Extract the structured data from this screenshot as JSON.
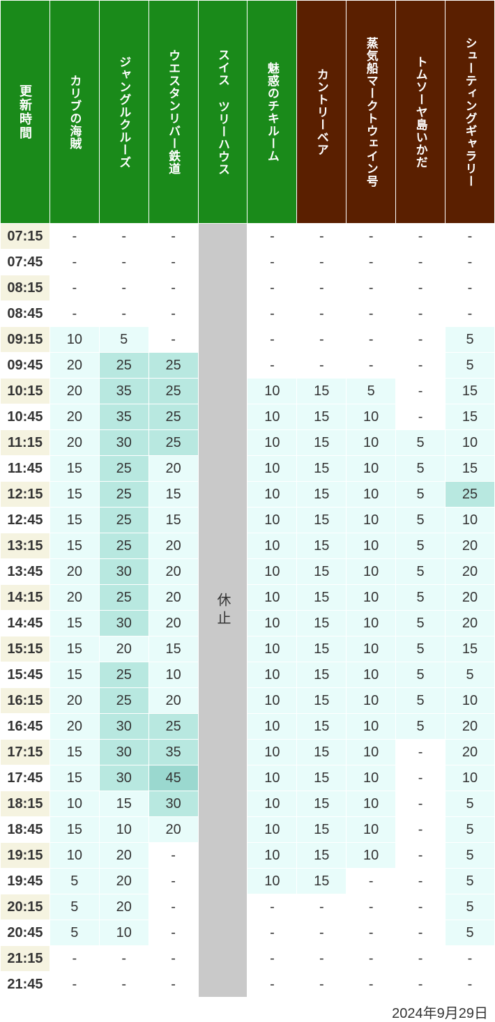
{
  "date_label": "2024年9月29日",
  "closed_label": "休止",
  "colors": {
    "header_time_bg": "#1a8a1a",
    "header_green_bg": "#1a8a1a",
    "header_brown_bg": "#5a1f00",
    "time_row_even": "#f5f3e0",
    "time_row_odd": "#ffffff",
    "closed_bg": "#c9c9c9",
    "tier_white": "#ffffff",
    "tier_light": "#e8fcfa",
    "tier_mid": "#b8e8e0",
    "tier_dark": "#9ad8cf"
  },
  "tiers": {
    "white": {
      "min": null,
      "max": null
    },
    "light": {
      "min": 5,
      "max": 20
    },
    "mid": {
      "min": 25,
      "max": 35
    },
    "dark": {
      "min": 40,
      "max": 999
    }
  },
  "columns": [
    {
      "key": "time",
      "label": "更新時間",
      "color_group": "green",
      "is_time": true
    },
    {
      "key": "c1",
      "label": "カリブの海賊",
      "color_group": "green"
    },
    {
      "key": "c2",
      "label": "ジャングルクルーズ",
      "color_group": "green"
    },
    {
      "key": "c3",
      "label": "ウエスタンリバー鉄道",
      "color_group": "green"
    },
    {
      "key": "c4",
      "label": "スイス ツリーハウス",
      "color_group": "green",
      "closed": true
    },
    {
      "key": "c5",
      "label": "魅惑のチキルーム",
      "color_group": "green"
    },
    {
      "key": "c6",
      "label": "カントリーベア",
      "color_group": "brown"
    },
    {
      "key": "c7",
      "label": "蒸気船マークトウェイン号",
      "color_group": "brown"
    },
    {
      "key": "c8",
      "label": "トムソーヤ島いかだ",
      "color_group": "brown"
    },
    {
      "key": "c9",
      "label": "シューティングギャラリー",
      "color_group": "brown"
    }
  ],
  "times": [
    "07:15",
    "07:45",
    "08:15",
    "08:45",
    "09:15",
    "09:45",
    "10:15",
    "10:45",
    "11:15",
    "11:45",
    "12:15",
    "12:45",
    "13:15",
    "13:45",
    "14:15",
    "14:45",
    "15:15",
    "15:45",
    "16:15",
    "16:45",
    "17:15",
    "17:45",
    "18:15",
    "18:45",
    "19:15",
    "19:45",
    "20:15",
    "20:45",
    "21:15",
    "21:45"
  ],
  "data": {
    "c1": [
      "-",
      "-",
      "-",
      "-",
      "10",
      "20",
      "20",
      "20",
      "20",
      "15",
      "15",
      "15",
      "15",
      "20",
      "20",
      "15",
      "15",
      "15",
      "20",
      "20",
      "15",
      "15",
      "10",
      "15",
      "10",
      "5",
      "5",
      "5",
      "-",
      "-"
    ],
    "c2": [
      "-",
      "-",
      "-",
      "-",
      "5",
      "25",
      "35",
      "35",
      "30",
      "25",
      "25",
      "25",
      "25",
      "30",
      "25",
      "30",
      "20",
      "25",
      "25",
      "30",
      "30",
      "30",
      "15",
      "10",
      "20",
      "20",
      "20",
      "10",
      "-",
      "-"
    ],
    "c3": [
      "-",
      "-",
      "-",
      "-",
      "-",
      "25",
      "25",
      "25",
      "25",
      "20",
      "15",
      "15",
      "20",
      "20",
      "20",
      "20",
      "15",
      "10",
      "20",
      "25",
      "35",
      "45",
      "30",
      "20",
      "-",
      "-",
      "-",
      "-",
      "-",
      "-"
    ],
    "c5": [
      "-",
      "-",
      "-",
      "-",
      "-",
      "-",
      "10",
      "10",
      "10",
      "10",
      "10",
      "10",
      "10",
      "10",
      "10",
      "10",
      "10",
      "10",
      "10",
      "10",
      "10",
      "10",
      "10",
      "10",
      "10",
      "10",
      "-",
      "-",
      "-",
      "-"
    ],
    "c6": [
      "-",
      "-",
      "-",
      "-",
      "-",
      "-",
      "15",
      "15",
      "15",
      "15",
      "15",
      "15",
      "15",
      "15",
      "15",
      "15",
      "15",
      "15",
      "15",
      "15",
      "15",
      "15",
      "15",
      "15",
      "15",
      "15",
      "-",
      "-",
      "-",
      "-"
    ],
    "c7": [
      "-",
      "-",
      "-",
      "-",
      "-",
      "-",
      "5",
      "10",
      "10",
      "10",
      "10",
      "10",
      "10",
      "10",
      "10",
      "10",
      "10",
      "10",
      "10",
      "10",
      "10",
      "10",
      "10",
      "10",
      "10",
      "-",
      "-",
      "-",
      "-",
      "-"
    ],
    "c8": [
      "-",
      "-",
      "-",
      "-",
      "-",
      "-",
      "-",
      "-",
      "5",
      "5",
      "5",
      "5",
      "5",
      "5",
      "5",
      "5",
      "5",
      "5",
      "5",
      "5",
      "-",
      "-",
      "-",
      "-",
      "-",
      "-",
      "-",
      "-",
      "-",
      "-"
    ],
    "c9": [
      "-",
      "-",
      "-",
      "-",
      "5",
      "5",
      "15",
      "15",
      "10",
      "15",
      "25",
      "10",
      "20",
      "20",
      "20",
      "20",
      "15",
      "5",
      "10",
      "20",
      "20",
      "10",
      "5",
      "5",
      "5",
      "5",
      "5",
      "5",
      "-",
      "-"
    ]
  }
}
